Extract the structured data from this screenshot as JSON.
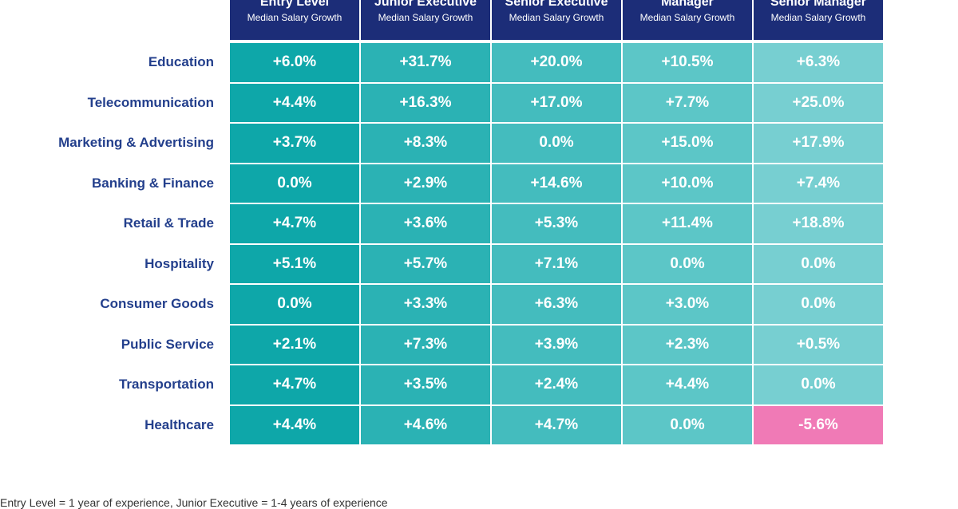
{
  "table": {
    "columns": [
      {
        "title": "Entry Level",
        "subtitle": "Median Salary Growth"
      },
      {
        "title": "Junior Executive",
        "subtitle": "Median Salary Growth"
      },
      {
        "title": "Senior Executive",
        "subtitle": "Median Salary Growth"
      },
      {
        "title": "Manager",
        "subtitle": "Median Salary Growth"
      },
      {
        "title": "Senior Manager",
        "subtitle": "Median Salary Growth"
      }
    ],
    "column_colors": [
      "#0ea7a9",
      "#2bb2b4",
      "#44bcbe",
      "#5cc6c7",
      "#77cfd1"
    ],
    "negative_color": "#f07ab6",
    "rows": [
      {
        "label": "Education",
        "cells": [
          "+6.0%",
          "+31.7%",
          "+20.0%",
          "+10.5%",
          "+6.3%"
        ]
      },
      {
        "label": "Telecommunication",
        "cells": [
          "+4.4%",
          "+16.3%",
          "+17.0%",
          "+7.7%",
          "+25.0%"
        ]
      },
      {
        "label": "Marketing & Advertising",
        "cells": [
          "+3.7%",
          "+8.3%",
          "0.0%",
          "+15.0%",
          "+17.9%"
        ]
      },
      {
        "label": "Banking & Finance",
        "cells": [
          "0.0%",
          "+2.9%",
          "+14.6%",
          "+10.0%",
          "+7.4%"
        ]
      },
      {
        "label": "Retail & Trade",
        "cells": [
          "+4.7%",
          "+3.6%",
          "+5.3%",
          "+11.4%",
          "+18.8%"
        ]
      },
      {
        "label": "Hospitality",
        "cells": [
          "+5.1%",
          "+5.7%",
          "+7.1%",
          "0.0%",
          "0.0%"
        ]
      },
      {
        "label": "Consumer Goods",
        "cells": [
          "0.0%",
          "+3.3%",
          "+6.3%",
          "+3.0%",
          "0.0%"
        ]
      },
      {
        "label": "Public Service",
        "cells": [
          "+2.1%",
          "+7.3%",
          "+3.9%",
          "+2.3%",
          "+0.5%"
        ]
      },
      {
        "label": "Transportation",
        "cells": [
          "+4.7%",
          "+3.5%",
          "+2.4%",
          "+4.4%",
          "0.0%"
        ]
      },
      {
        "label": "Healthcare",
        "cells": [
          "+4.4%",
          "+4.6%",
          "+4.7%",
          "0.0%",
          "-5.6%"
        ]
      }
    ]
  },
  "footnote": "Entry Level = 1 year of experience, Junior Executive = 1-4 years of experience"
}
